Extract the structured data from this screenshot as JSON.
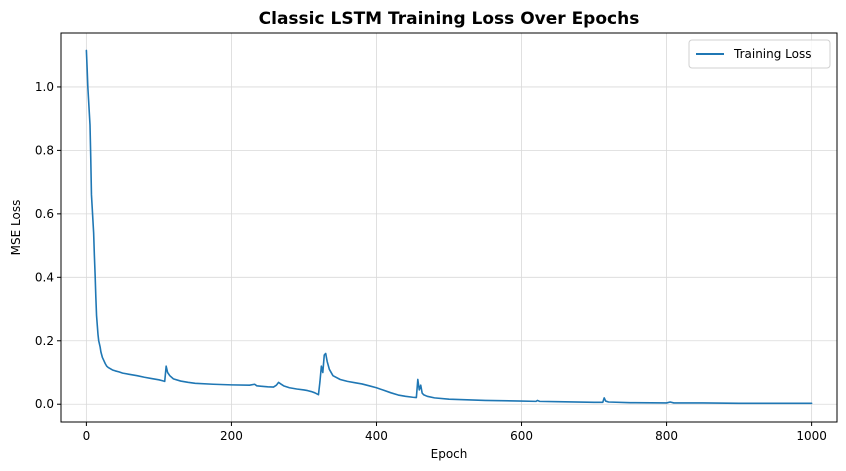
{
  "chart_data": {
    "type": "line",
    "title": "Classic LSTM Training Loss Over Epochs",
    "xlabel": "Epoch",
    "ylabel": "MSE Loss",
    "xlim": [
      -35,
      1035
    ],
    "ylim": [
      -0.056,
      1.17
    ],
    "xticks": [
      0,
      200,
      400,
      600,
      800,
      1000
    ],
    "xtick_labels": [
      "0",
      "200",
      "400",
      "600",
      "800",
      "1000"
    ],
    "yticks": [
      0.0,
      0.2,
      0.4,
      0.6,
      0.8,
      1.0
    ],
    "ytick_labels": [
      "0.0",
      "0.2",
      "0.4",
      "0.6",
      "0.8",
      "1.0"
    ],
    "grid": true,
    "legend_position": "top-right",
    "series": [
      {
        "name": "Training Loss",
        "color": "#1f77b4",
        "x": [
          0,
          1,
          2,
          3,
          4,
          5,
          6,
          7,
          8,
          9,
          10,
          11,
          12,
          13,
          14,
          15,
          16,
          17,
          18,
          19,
          20,
          22,
          24,
          26,
          28,
          30,
          33,
          36,
          40,
          45,
          50,
          60,
          70,
          80,
          90,
          100,
          105,
          108,
          110,
          112,
          115,
          120,
          130,
          140,
          150,
          175,
          200,
          225,
          232,
          235,
          240,
          250,
          258,
          262,
          265,
          268,
          272,
          280,
          290,
          300,
          305,
          310,
          315,
          320,
          322,
          324,
          326,
          328,
          330,
          332,
          335,
          340,
          350,
          360,
          370,
          380,
          390,
          400,
          410,
          420,
          430,
          440,
          450,
          455,
          457,
          459,
          461,
          463,
          465,
          470,
          480,
          500,
          550,
          600,
          620,
          622,
          625,
          650,
          700,
          712,
          714,
          716,
          720,
          750,
          800,
          805,
          810,
          850,
          900,
          950,
          1000
        ],
        "y": [
          1.115,
          1.06,
          1.0,
          0.96,
          0.92,
          0.88,
          0.78,
          0.66,
          0.62,
          0.58,
          0.54,
          0.47,
          0.41,
          0.34,
          0.28,
          0.25,
          0.22,
          0.2,
          0.19,
          0.18,
          0.165,
          0.148,
          0.138,
          0.128,
          0.12,
          0.116,
          0.112,
          0.108,
          0.105,
          0.102,
          0.098,
          0.094,
          0.09,
          0.085,
          0.081,
          0.077,
          0.074,
          0.072,
          0.12,
          0.1,
          0.09,
          0.08,
          0.073,
          0.069,
          0.066,
          0.063,
          0.061,
          0.06,
          0.063,
          0.058,
          0.057,
          0.055,
          0.054,
          0.06,
          0.069,
          0.064,
          0.058,
          0.052,
          0.048,
          0.045,
          0.043,
          0.04,
          0.036,
          0.03,
          0.07,
          0.12,
          0.1,
          0.155,
          0.16,
          0.135,
          0.11,
          0.09,
          0.078,
          0.072,
          0.068,
          0.064,
          0.058,
          0.052,
          0.044,
          0.036,
          0.029,
          0.025,
          0.022,
          0.021,
          0.078,
          0.045,
          0.06,
          0.035,
          0.03,
          0.025,
          0.02,
          0.016,
          0.012,
          0.01,
          0.009,
          0.012,
          0.009,
          0.008,
          0.006,
          0.006,
          0.02,
          0.01,
          0.007,
          0.005,
          0.004,
          0.007,
          0.004,
          0.004,
          0.003,
          0.003,
          0.003
        ]
      }
    ]
  }
}
